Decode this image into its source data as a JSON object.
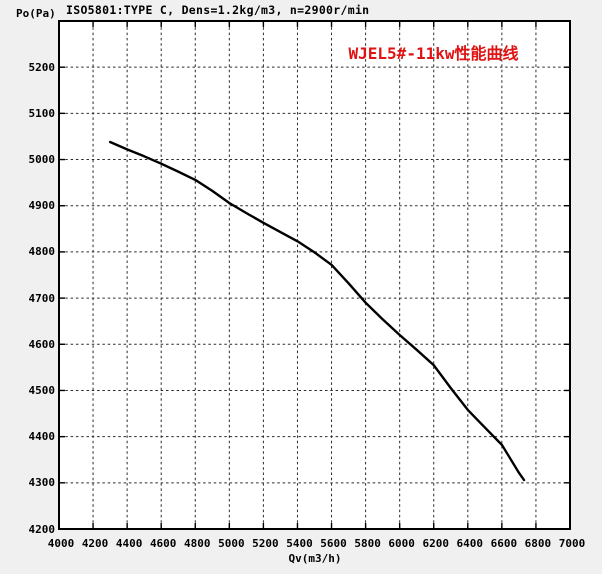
{
  "header": {
    "test_standard": "ISO5801:TYPE C, Dens=1.2kg/m3, n=2900r/min",
    "y_axis_unit_label": "Po(Pa)"
  },
  "title": {
    "text": "WJEL5#-11kw性能曲线",
    "color": "#e01212"
  },
  "x_axis": {
    "label": "Qv(m3/h)"
  },
  "chart_data": {
    "type": "line",
    "title": "WJEL5#-11kw性能曲线",
    "xlabel": "Qv(m3/h)",
    "ylabel": "Po(Pa)",
    "xlim": [
      4000,
      7000
    ],
    "ylim": [
      4200,
      5300
    ],
    "x_ticks": [
      4000,
      4200,
      4400,
      4600,
      4800,
      5000,
      5200,
      5400,
      5600,
      5800,
      6000,
      6200,
      6400,
      6600,
      6800,
      7000
    ],
    "y_ticks": [
      4200,
      4300,
      4400,
      4500,
      4600,
      4700,
      4800,
      4900,
      5000,
      5100,
      5200
    ],
    "grid": "dashed-both-axes",
    "legend": "none",
    "series": [
      {
        "name": "WJEL5#-11kw fan performance curve",
        "color": "#000000",
        "x": [
          4300,
          4400,
          4500,
          4600,
          4700,
          4800,
          4900,
          5000,
          5100,
          5200,
          5300,
          5400,
          5500,
          5600,
          5700,
          5800,
          5900,
          6000,
          6100,
          6200,
          6300,
          6400,
          6500,
          6600,
          6700,
          6730
        ],
        "y": [
          5038,
          5022,
          5007,
          4991,
          4974,
          4956,
          4932,
          4906,
          4884,
          4863,
          4843,
          4823,
          4799,
          4772,
          4732,
          4690,
          4654,
          4620,
          4588,
          4555,
          4505,
          4458,
          4420,
          4382,
          4322,
          4306
        ]
      }
    ],
    "plot_background": "#ffffff",
    "page_background": "#f0f0f0",
    "frame_color": "#000000",
    "grid_color": "#2a2a2a"
  }
}
